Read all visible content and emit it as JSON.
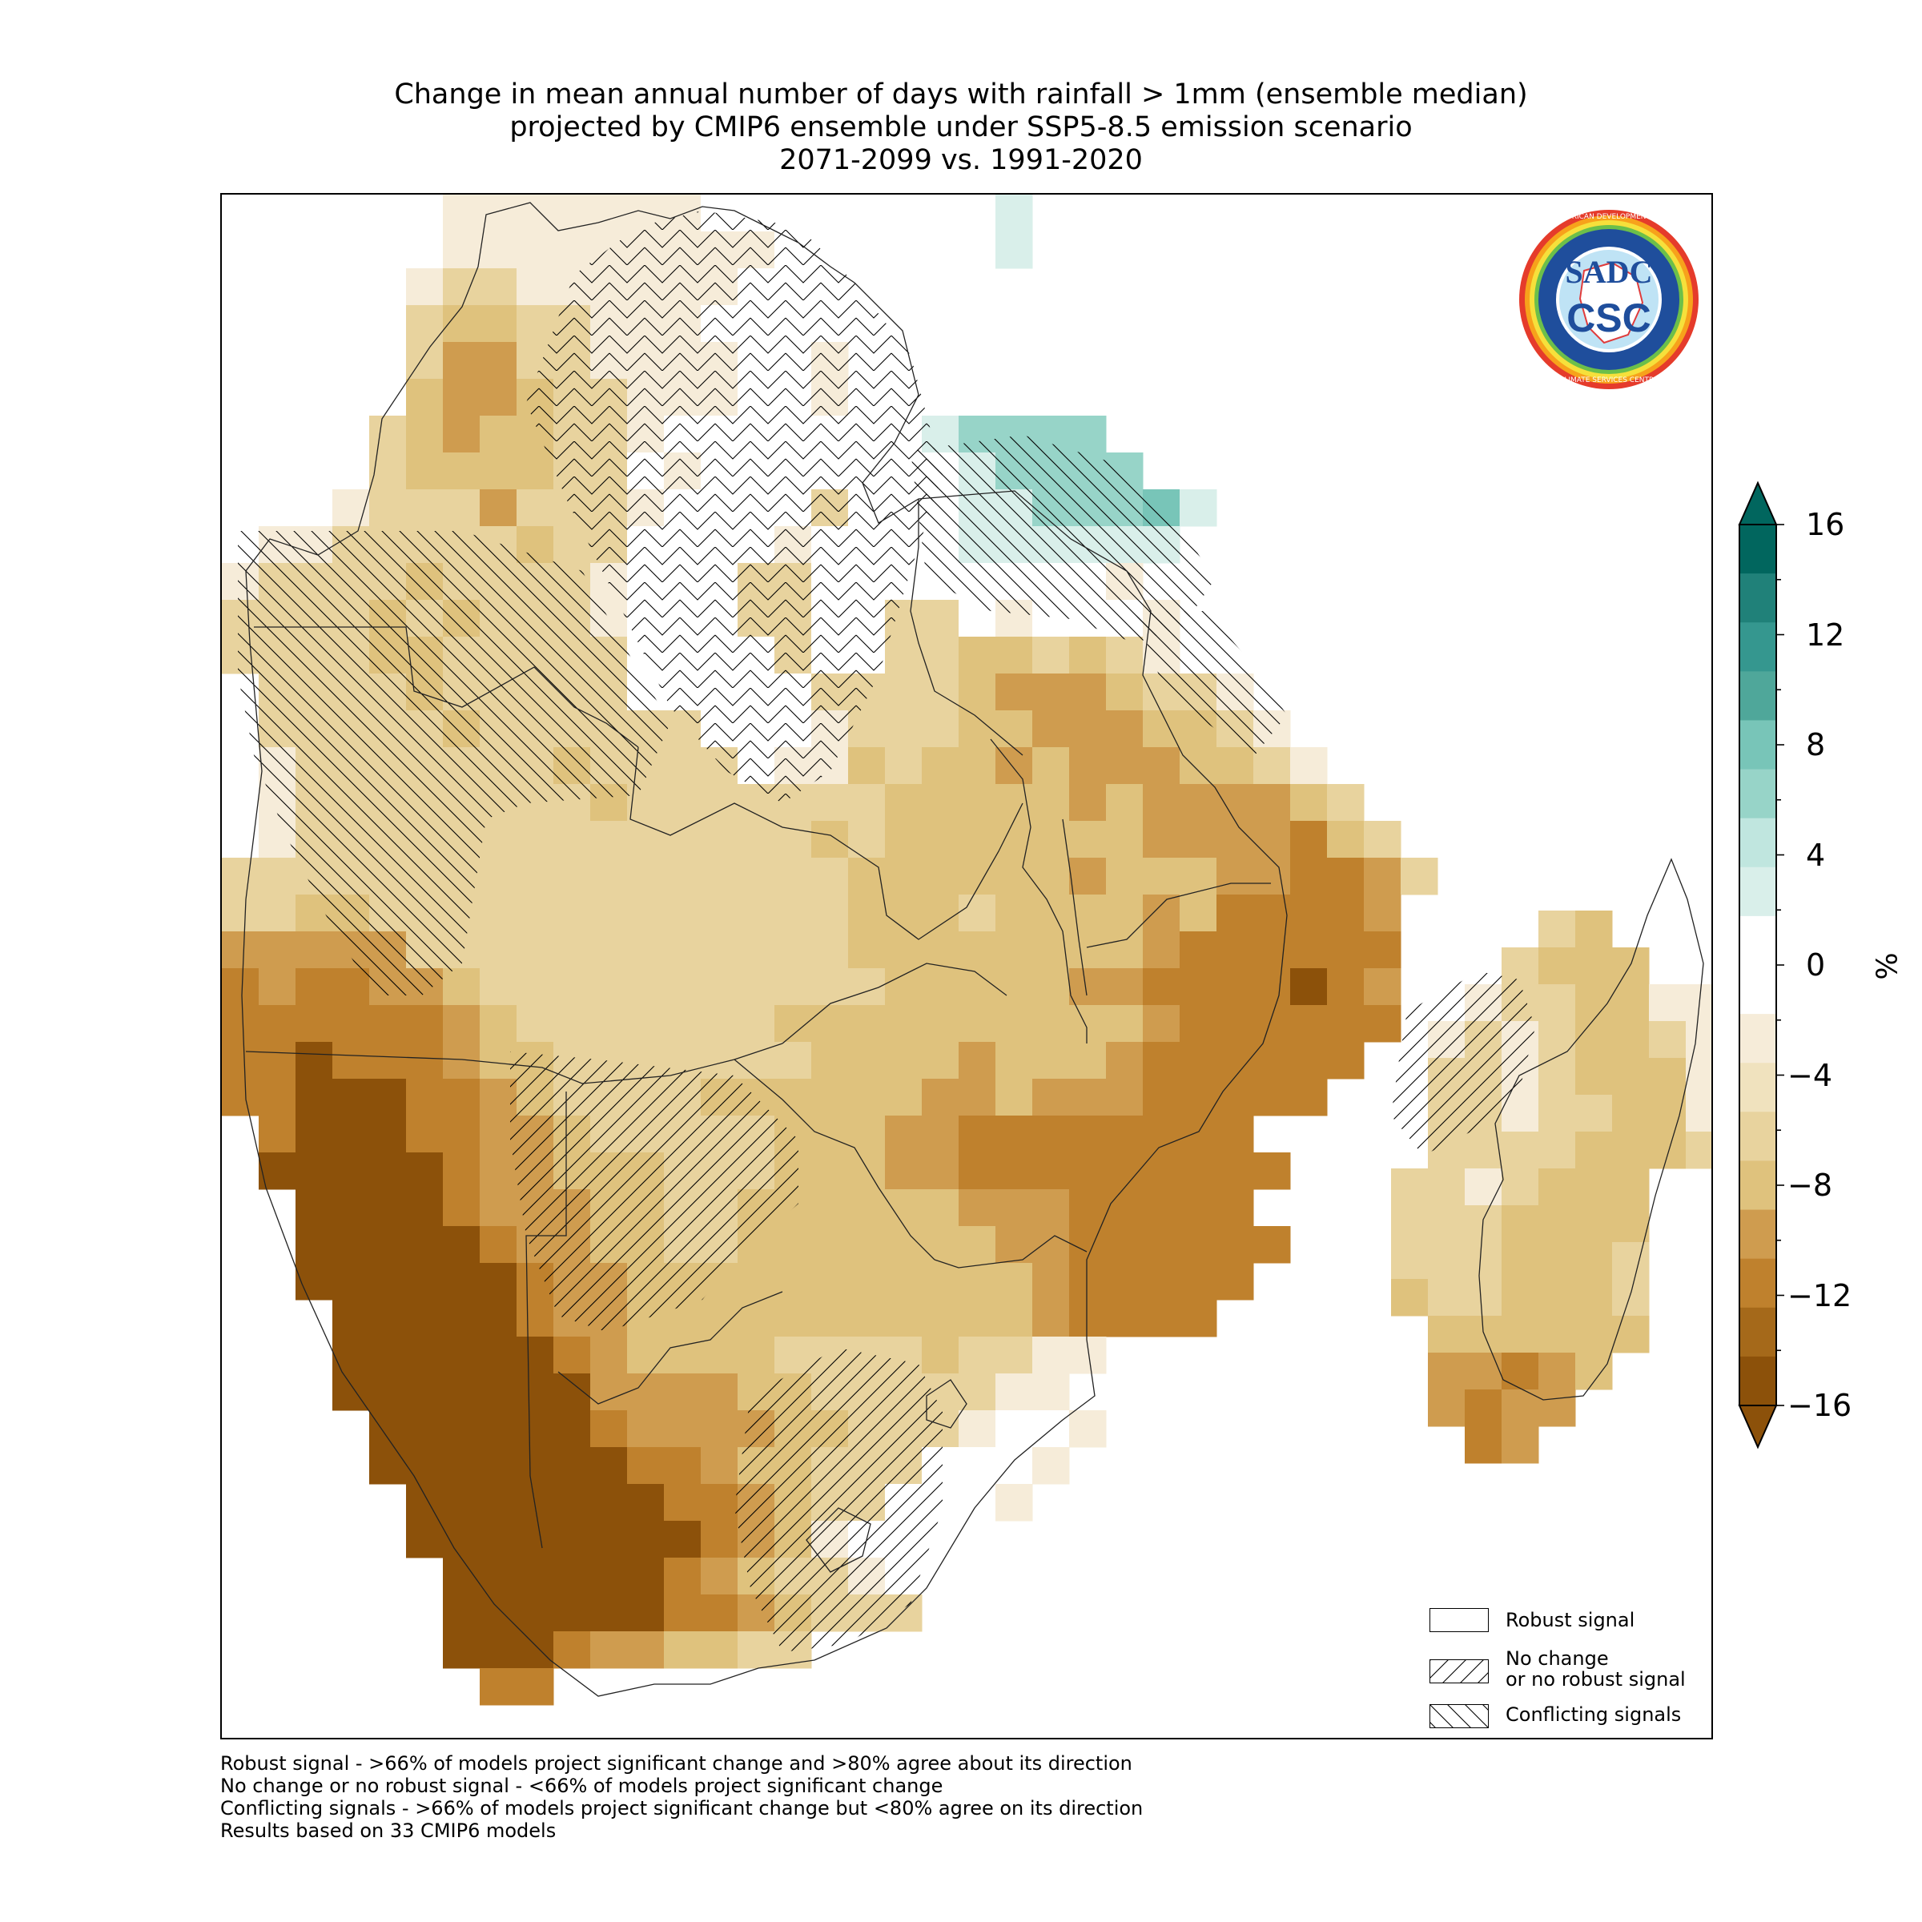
{
  "title": {
    "line1": "Change in mean annual number of days with rainfall > 1mm (ensemble median)",
    "line2": "projected by CMIP6 ensemble under SSP5-8.5 emission scenario",
    "line3": "2071-2099 vs. 1991-2020"
  },
  "legend": {
    "robust": "Robust signal",
    "no_change_line1": "No change",
    "no_change_line2": "or no robust signal",
    "conflicting": "Conflicting signals"
  },
  "footnotes": [
    "Robust signal - >66% of models project significant change and >80% agree about its direction",
    "No change or no robust signal - <66% of models project significant change",
    "Conflicting signals - >66% of models project significant change but <80% agree on its direction",
    "Results based on 33 CMIP6 models"
  ],
  "colorbar": {
    "unit": "%",
    "ticks": [
      "16",
      "12",
      "8",
      "4",
      "0",
      "−4",
      "−8",
      "−12",
      "−16"
    ],
    "tick_values": [
      16,
      12,
      8,
      4,
      0,
      -4,
      -8,
      -12,
      -16
    ],
    "range": [
      -16,
      16
    ],
    "colors": [
      "#8c510a",
      "#a5691a",
      "#bf812d",
      "#cf9c4f",
      "#dfc27d",
      "#e8d39e",
      "#f0e2be",
      "#f6ecd9",
      "#ffffff",
      "#ffffff",
      "#d9efea",
      "#c0e6df",
      "#97d4c8",
      "#78c5b8",
      "#4fa79a",
      "#35978f",
      "#208179",
      "#01665e"
    ]
  },
  "logo": {
    "text_main_top": "SADC",
    "text_main_bottom": "CSC",
    "ring_top": "SOUTHERN AFRICAN DEVELOPMENT COMMUNITY",
    "ring_bottom": "CLIMATE SERVICES CENTRE"
  },
  "map": {
    "field": "Change in mean annual number of days with rainfall > 1mm",
    "colors": {
      "dark": "#8c510a",
      "brown": "#bf812d",
      "tan": "#cf9c4f",
      "sand": "#dfc27d",
      "light": "#e8d39e",
      "pale": "#f6ecd9",
      "teal_light": "#d9efea",
      "teal": "#97d4c8",
      "teal_mid": "#78c5b8"
    }
  }
}
